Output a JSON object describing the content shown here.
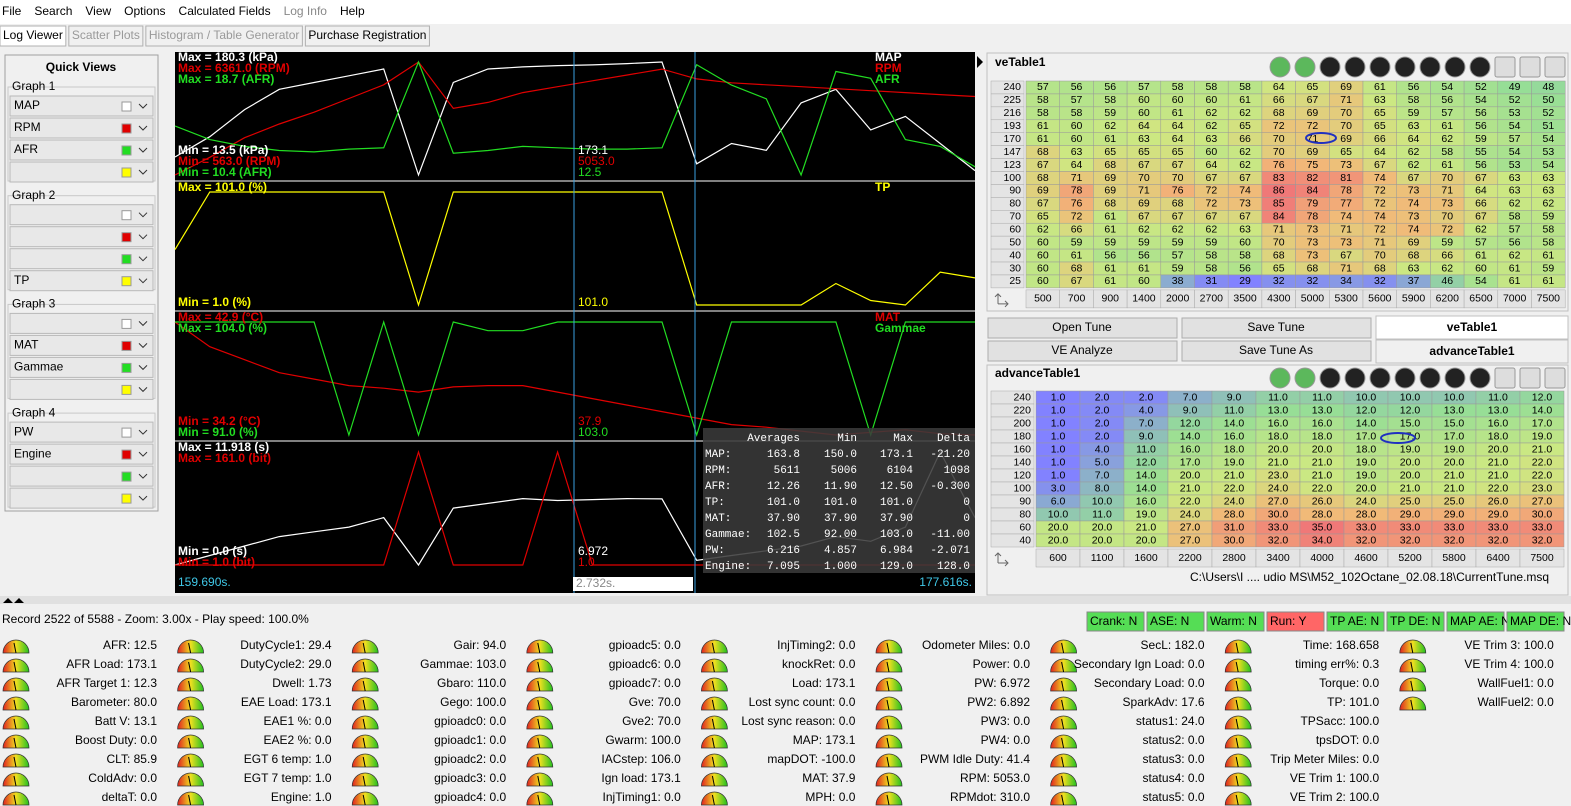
{
  "menu": [
    {
      "text": "File"
    },
    {
      "text": "Search"
    },
    {
      "text": "View"
    },
    {
      "text": "Options"
    },
    {
      "text": "Calculated Fields"
    },
    {
      "text": "Log Info",
      "enabled": false
    },
    {
      "text": "Help"
    }
  ],
  "tabs": [
    {
      "text": "Log Viewer",
      "selected": true
    },
    {
      "text": "Scatter Plots",
      "enabled": false
    },
    {
      "text": "Histogram / Table Generator",
      "enabled": false
    },
    {
      "text": "Purchase Registration"
    }
  ],
  "quick_views": {
    "title": "Quick Views",
    "graphs": [
      {
        "label": "Graph 1",
        "fields": [
          {
            "name": "MAP",
            "color": "#ffffff"
          },
          {
            "name": "RPM",
            "color": "#e00000"
          },
          {
            "name": "AFR",
            "color": "#22dd22"
          },
          {
            "color": "#ffff00"
          }
        ]
      },
      {
        "label": "Graph 2",
        "fields": [
          {
            "color": "#ffffff"
          },
          {
            "color": "#e00000"
          },
          {
            "color": "#22dd22"
          },
          {
            "name": "TP",
            "color": "#ffff00"
          }
        ]
      },
      {
        "label": "Graph 3",
        "fields": [
          {
            "color": "#ffffff"
          },
          {
            "name": "MAT",
            "color": "#e00000"
          },
          {
            "name": "Gammae",
            "color": "#22dd22"
          },
          {
            "color": "#ffff00"
          }
        ]
      },
      {
        "label": "Graph 4",
        "fields": [
          {
            "name": "PW",
            "color": "#ffffff"
          },
          {
            "name": "Engine",
            "color": "#e00000"
          },
          {
            "color": "#22dd22"
          },
          {
            "color": "#ffff00"
          }
        ]
      }
    ]
  },
  "plots": [
    {
      "channels": [
        {
          "name": "MAP",
          "color": "#ffffff",
          "max": "Max = 180.3 (kPa)",
          "min": "Min = 13.5 (kPa)",
          "cursor": "173.1",
          "values": [
            40,
            70,
            110,
            140,
            150,
            160,
            170,
            13.5,
            150,
            170,
            173,
            175,
            176,
            178,
            180.3,
            30,
            60,
            50,
            120,
            140,
            80,
            100,
            60,
            20
          ]
        },
        {
          "name": "RPM",
          "color": "#e00000",
          "max": "Max = 6361.0 (RPM)",
          "min": "Min = 563.0 (RPM)",
          "cursor": "5053.0",
          "values": [
            600,
            1500,
            2500,
            3200,
            3800,
            4500,
            5200,
            6361,
            4000,
            4300,
            4800,
            5100,
            5400,
            5700,
            6000,
            5500,
            5300,
            5200,
            5100,
            5000,
            4900,
            4800,
            4700,
            4600
          ]
        },
        {
          "name": "AFR",
          "color": "#22dd22",
          "max": "Max = 18.7 (AFR)",
          "min": "Min = 10.4 (AFR)",
          "cursor": "12.5",
          "values": [
            14,
            13,
            12.5,
            12.2,
            12.1,
            12.3,
            12.4,
            18.7,
            12,
            12.2,
            12.5,
            12.4,
            12.3,
            12.3,
            12.4,
            18.5,
            17,
            16,
            10.4,
            18,
            17.5,
            13,
            12.5,
            11
          ]
        }
      ]
    },
    {
      "channels": [
        {
          "name": "TP",
          "color": "#ffff00",
          "max": "Max = 101.0 (%)",
          "min": "Min = 1.0 (%)",
          "cursor": "101.0",
          "values": [
            50,
            101,
            101,
            101,
            101,
            101,
            101,
            1,
            101,
            101,
            101,
            101,
            101,
            101,
            101,
            1,
            1,
            1,
            1,
            20,
            5,
            1,
            30,
            25
          ]
        }
      ]
    },
    {
      "channels": [
        {
          "name": "MAT",
          "color": "#e00000",
          "max": "Max = 42.9 (°C)",
          "min": "Min = 34.2 (°C)",
          "cursor": "37.9",
          "values": [
            42.9,
            41,
            40,
            39,
            38.5,
            38,
            37.8,
            37.5,
            37.9,
            38,
            38,
            37.5,
            37,
            36.5,
            36,
            35.5,
            35,
            34.8,
            34.5,
            34.2,
            34.4,
            34.6,
            34.3,
            34.2
          ]
        },
        {
          "name": "Gammae",
          "color": "#22dd22",
          "max": "Max = 104.0 (%)",
          "min": "Min = 91.0 (%)",
          "cursor": "103.0",
          "values": [
            104,
            104,
            104,
            104,
            104,
            91,
            104,
            91,
            104,
            103,
            103,
            104,
            104,
            104,
            104,
            91,
            104,
            104,
            104,
            104,
            91,
            104,
            104,
            104
          ]
        }
      ]
    },
    {
      "channels": [
        {
          "color": "#ffffff",
          "max": "Max = 11.918 (s)",
          "min": "Min = 0.0 (s)",
          "cursor": "6.972",
          "values": [
            0,
            1,
            2,
            3,
            3.5,
            4,
            5,
            0,
            6,
            6.5,
            7,
            6.8,
            6.9,
            7,
            6.97,
            0.5,
            1,
            1.5,
            2,
            3,
            2.5,
            4,
            11.918,
            5
          ]
        },
        {
          "color": "#e00000",
          "max": "Max = 161.0 (bit)",
          "min": "Min = 1.0 (bit)",
          "cursor": "1.0",
          "values": [
            1,
            1,
            1,
            1,
            1,
            1,
            1,
            161,
            1,
            1,
            1,
            161,
            1,
            1,
            1,
            1,
            1,
            1,
            1,
            1,
            1,
            1,
            1,
            1
          ]
        }
      ]
    }
  ],
  "time": {
    "start": "159.690s.",
    "cursor": "2.732s.",
    "end": "177.616s."
  },
  "averages": {
    "headers": [
      "Averages",
      "Min",
      "Max",
      "Delta"
    ],
    "rows": [
      [
        "MAP:",
        "163.8",
        "150.0",
        "173.1",
        "-21.20"
      ],
      [
        "RPM:",
        "5611",
        "5006",
        "6104",
        "1098"
      ],
      [
        "AFR:",
        "12.26",
        "11.90",
        "12.50",
        "-0.300"
      ],
      [
        "TP:",
        "101.0",
        "101.0",
        "101.0",
        "0"
      ],
      [
        "MAT:",
        "37.90",
        "37.90",
        "37.90",
        "0"
      ],
      [
        "Gammae:",
        "102.5",
        "92.00",
        "103.0",
        "-11.00"
      ],
      [
        "PW:",
        "6.216",
        "4.857",
        "6.984",
        "-2.071"
      ],
      [
        "Engine:",
        "7.095",
        "1.000",
        "129.0",
        "128.0"
      ]
    ]
  },
  "ve_table": {
    "title": "veTable1",
    "y": [
      "240",
      "225",
      "216",
      "193",
      "170",
      "147",
      "123",
      "100",
      "90",
      "80",
      "70",
      "60",
      "50",
      "40",
      "30",
      "25"
    ],
    "x": [
      "500",
      "700",
      "900",
      "1400",
      "2000",
      "2700",
      "3500",
      "4300",
      "5000",
      "5300",
      "5600",
      "5900",
      "6200",
      "6500",
      "7000",
      "7500"
    ],
    "cells": [
      [
        57,
        56,
        56,
        57,
        58,
        58,
        58,
        64,
        65,
        69,
        61,
        56,
        54,
        52,
        49,
        48
      ],
      [
        58,
        57,
        58,
        60,
        60,
        60,
        61,
        66,
        67,
        71,
        63,
        58,
        56,
        54,
        52,
        50
      ],
      [
        58,
        58,
        59,
        60,
        61,
        62,
        62,
        68,
        69,
        70,
        65,
        59,
        57,
        56,
        53,
        52
      ],
      [
        61,
        60,
        62,
        64,
        64,
        62,
        65,
        72,
        72,
        70,
        65,
        63,
        61,
        56,
        54,
        51
      ],
      [
        61,
        60,
        61,
        63,
        64,
        63,
        66,
        70,
        71,
        69,
        66,
        64,
        62,
        59,
        57,
        54
      ],
      [
        68,
        63,
        65,
        65,
        65,
        60,
        62,
        70,
        69,
        65,
        64,
        62,
        58,
        55,
        54,
        53
      ],
      [
        67,
        64,
        68,
        67,
        67,
        64,
        62,
        76,
        75,
        73,
        67,
        62,
        61,
        56,
        53,
        54
      ],
      [
        68,
        71,
        69,
        70,
        70,
        67,
        67,
        83,
        82,
        81,
        74,
        67,
        70,
        67,
        63,
        63
      ],
      [
        69,
        78,
        69,
        71,
        76,
        72,
        74,
        86,
        84,
        78,
        72,
        73,
        71,
        64,
        63,
        63
      ],
      [
        67,
        76,
        68,
        69,
        68,
        72,
        73,
        85,
        79,
        77,
        72,
        74,
        73,
        66,
        62,
        62
      ],
      [
        65,
        72,
        61,
        67,
        67,
        67,
        67,
        84,
        78,
        74,
        74,
        73,
        70,
        67,
        58,
        59
      ],
      [
        62,
        66,
        61,
        62,
        62,
        62,
        63,
        71,
        73,
        71,
        72,
        74,
        72,
        62,
        57,
        58
      ],
      [
        60,
        59,
        59,
        59,
        59,
        59,
        60,
        70,
        73,
        73,
        71,
        69,
        59,
        57,
        56,
        58
      ],
      [
        60,
        61,
        56,
        56,
        57,
        58,
        58,
        68,
        73,
        67,
        70,
        68,
        66,
        61,
        62,
        61
      ],
      [
        60,
        68,
        61,
        61,
        59,
        58,
        56,
        65,
        68,
        71,
        68,
        63,
        62,
        60,
        61,
        59
      ],
      [
        60,
        67,
        61,
        60,
        38,
        31,
        29,
        32,
        32,
        34,
        32,
        37,
        46,
        54,
        61,
        61
      ]
    ]
  },
  "buttons": [
    "Open Tune",
    "Save Tune",
    "VE Analyze",
    "Save Tune As"
  ],
  "table_tabs": [
    {
      "text": "veTable1",
      "selected": true
    },
    {
      "text": "advanceTable1"
    }
  ],
  "advance_table": {
    "title": "advanceTable1",
    "y": [
      "240",
      "220",
      "200",
      "180",
      "160",
      "140",
      "120",
      "100",
      "90",
      "80",
      "60",
      "40"
    ],
    "x": [
      "600",
      "1100",
      "1600",
      "2200",
      "2800",
      "3400",
      "4000",
      "4600",
      "5200",
      "5800",
      "6400",
      "7500"
    ],
    "cells": [
      [
        "1.0",
        "2.0",
        "2.0",
        "7.0",
        "9.0",
        "11.0",
        "11.0",
        "10.0",
        "10.0",
        "10.0",
        "11.0",
        "12.0"
      ],
      [
        "1.0",
        "2.0",
        "4.0",
        "9.0",
        "11.0",
        "13.0",
        "13.0",
        "12.0",
        "12.0",
        "13.0",
        "13.0",
        "14.0"
      ],
      [
        "1.0",
        "2.0",
        "7.0",
        "12.0",
        "14.0",
        "16.0",
        "16.0",
        "14.0",
        "15.0",
        "15.0",
        "16.0",
        "17.0"
      ],
      [
        "1.0",
        "2.0",
        "9.0",
        "14.0",
        "16.0",
        "18.0",
        "18.0",
        "17.0",
        "17.0",
        "17.0",
        "18.0",
        "19.0"
      ],
      [
        "1.0",
        "4.0",
        "11.0",
        "16.0",
        "18.0",
        "20.0",
        "20.0",
        "18.0",
        "19.0",
        "19.0",
        "20.0",
        "21.0"
      ],
      [
        "1.0",
        "5.0",
        "12.0",
        "17.0",
        "19.0",
        "21.0",
        "21.0",
        "19.0",
        "20.0",
        "20.0",
        "21.0",
        "22.0"
      ],
      [
        "1.0",
        "7.0",
        "14.0",
        "20.0",
        "21.0",
        "23.0",
        "21.0",
        "19.0",
        "20.0",
        "21.0",
        "21.0",
        "22.0"
      ],
      [
        "3.0",
        "8.0",
        "14.0",
        "21.0",
        "22.0",
        "24.0",
        "22.0",
        "20.0",
        "21.0",
        "21.0",
        "22.0",
        "23.0"
      ],
      [
        "6.0",
        "10.0",
        "16.0",
        "22.0",
        "24.0",
        "27.0",
        "26.0",
        "24.0",
        "25.0",
        "25.0",
        "26.0",
        "27.0"
      ],
      [
        "10.0",
        "11.0",
        "19.0",
        "24.0",
        "28.0",
        "30.0",
        "28.0",
        "28.0",
        "29.0",
        "29.0",
        "29.0",
        "30.0"
      ],
      [
        "20.0",
        "20.0",
        "21.0",
        "27.0",
        "31.0",
        "33.0",
        "35.0",
        "33.0",
        "33.0",
        "33.0",
        "33.0",
        "33.0"
      ],
      [
        "20.0",
        "20.0",
        "20.0",
        "27.0",
        "30.0",
        "32.0",
        "34.0",
        "32.0",
        "32.0",
        "32.0",
        "32.0",
        "32.0"
      ]
    ]
  },
  "tune_path": "C:\\Users\\I .... udio MS\\M52_102Octane_02.08.18\\CurrentTune.msq",
  "status": "Record 2522 of 5588 - Zoom: 3.00x - Play speed: 100.0%",
  "indicators": [
    {
      "text": "Crank: N",
      "color": "#55dd55"
    },
    {
      "text": "ASE: N",
      "color": "#55dd55"
    },
    {
      "text": "Warm: N",
      "color": "#55dd55"
    },
    {
      "text": "Run: Y",
      "color": "#ff6666"
    },
    {
      "text": "TP AE: N",
      "color": "#55dd55"
    },
    {
      "text": "TP DE: N",
      "color": "#55dd55"
    },
    {
      "text": "MAP AE: N",
      "color": "#55dd55"
    },
    {
      "text": "MAP DE: N",
      "color": "#55dd55"
    }
  ],
  "gauges": [
    [
      "AFR: 12.5",
      "AFR Load: 173.1",
      "AFR Target 1: 12.3",
      "Barometer: 80.0",
      "Batt V: 13.1",
      "Boost Duty: 0.0",
      "CLT: 85.9",
      "ColdAdv: 0.0",
      "deltaT: 0.0"
    ],
    [
      "DutyCycle1: 29.4",
      "DutyCycle2: 29.0",
      "Dwell: 1.73",
      "EAE Load: 173.1",
      "EAE1 %: 0.0",
      "EAE2 %: 0.0",
      "EGT 6 temp: 1.0",
      "EGT 7 temp: 1.0",
      "Engine: 1.0"
    ],
    [
      "Gair: 94.0",
      "Gammae: 103.0",
      "Gbaro: 110.0",
      "Gego: 100.0",
      "gpioadc0: 0.0",
      "gpioadc1: 0.0",
      "gpioadc2: 0.0",
      "gpioadc3: 0.0",
      "gpioadc4: 0.0"
    ],
    [
      "gpioadc5: 0.0",
      "gpioadc6: 0.0",
      "gpioadc7: 0.0",
      "Gve: 70.0",
      "Gve2: 70.0",
      "Gwarm: 100.0",
      "IACstep: 106.0",
      "Ign load: 173.1",
      "InjTiming1: 0.0"
    ],
    [
      "InjTiming2: 0.0",
      "knockRet: 0.0",
      "Load: 173.1",
      "Lost sync count: 0.0",
      "Lost sync reason: 0.0",
      "MAP: 173.1",
      "mapDOT: -100.0",
      "MAT: 37.9",
      "MPH: 0.0"
    ],
    [
      "Odometer Miles: 0.0",
      "Power: 0.0",
      "PW: 6.972",
      "PW2: 6.892",
      "PW3: 0.0",
      "PW4: 0.0",
      "PWM Idle Duty: 41.4",
      "RPM: 5053.0",
      "RPMdot: 310.0"
    ],
    [
      "SecL: 182.0",
      "Secondary Ign Load: 0.0",
      "Secondary Load: 0.0",
      "SparkAdv: 17.6",
      "status1: 24.0",
      "status2: 0.0",
      "status3: 0.0",
      "status4: 0.0",
      "status5: 0.0"
    ],
    [
      "Time: 168.658",
      "timing err%: 0.3",
      "Torque: 0.0",
      "TP: 101.0",
      "TPSacc: 100.0",
      "tpsDOT: 0.0",
      "Trip Meter Miles: 0.0",
      "VE Trim 1: 100.0",
      "VE Trim 2: 100.0"
    ],
    [
      "VE Trim 3: 100.0",
      "VE Trim 4: 100.0",
      "WallFuel1: 0.0",
      "WallFuel2: 0.0"
    ]
  ]
}
